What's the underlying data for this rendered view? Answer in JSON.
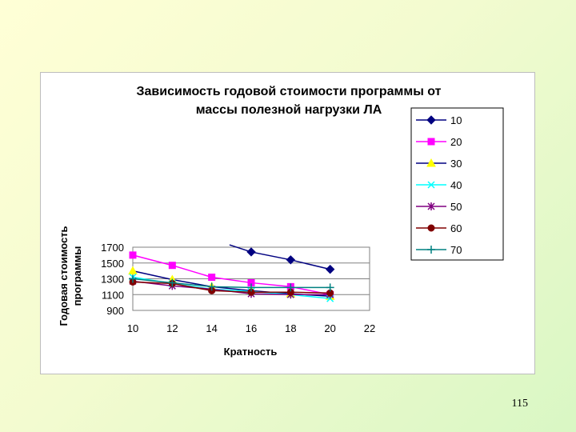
{
  "slide": {
    "page_number": "115"
  },
  "chart_data": {
    "type": "line",
    "title_lines": [
      "Зависимость годовой стоимости программы  от",
      "массы полезной нагрузки ЛА"
    ],
    "xlabel": "Кратность",
    "ylabel_lines": [
      "Годовая стоимость",
      "программы"
    ],
    "xlim": [
      10,
      22
    ],
    "ylim": [
      900,
      1700
    ],
    "x_ticks": [
      10,
      12,
      14,
      16,
      18,
      20,
      22
    ],
    "y_ticks": [
      900,
      1100,
      1300,
      1500,
      1700
    ],
    "grid": "horizontal",
    "legend_position": "right",
    "x": [
      10,
      12,
      14,
      16,
      18,
      20
    ],
    "series": [
      {
        "name": "10",
        "color": "#000080",
        "marker": "diamond",
        "values": [
          null,
          null,
          null,
          1640,
          1540,
          1420
        ],
        "lead_in": [
          14.9,
          1730
        ]
      },
      {
        "name": "20",
        "color": "#ff00ff",
        "marker": "square",
        "values": [
          1600,
          1470,
          1320,
          1250,
          1200,
          1100
        ]
      },
      {
        "name": "30",
        "color": "#000080",
        "marker": "triangle",
        "values": [
          1400,
          1290,
          1200,
          1150,
          1110,
          1080
        ]
      },
      {
        "name": "40",
        "color": "#00ffff",
        "marker": "x",
        "values": [
          1320,
          1240,
          1170,
          1140,
          1100,
          1050
        ]
      },
      {
        "name": "50",
        "color": "#800080",
        "marker": "star",
        "values": [
          1270,
          1210,
          1170,
          1110,
          1100,
          1100
        ]
      },
      {
        "name": "60",
        "color": "#800000",
        "marker": "circle",
        "values": [
          1260,
          1240,
          1150,
          1130,
          1130,
          1120
        ]
      },
      {
        "name": "70",
        "color": "#008080",
        "marker": "plus",
        "values": [
          1300,
          1250,
          1200,
          1190,
          1190,
          1190
        ]
      }
    ]
  }
}
